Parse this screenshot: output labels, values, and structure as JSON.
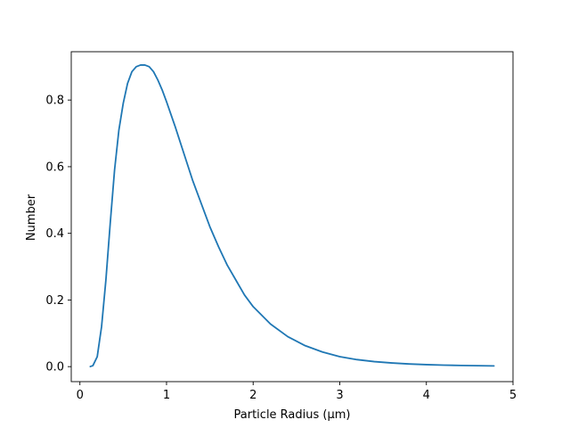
{
  "chart_data": {
    "type": "line",
    "title": "",
    "xlabel": "Particle Radius (μm)",
    "ylabel": "Number",
    "xlim": [
      -0.1,
      5.0
    ],
    "ylim": [
      -0.045,
      0.945
    ],
    "xticks": [
      "0",
      "1",
      "2",
      "3",
      "4",
      "5"
    ],
    "yticks": [
      "0.0",
      "0.2",
      "0.4",
      "0.6",
      "0.8"
    ],
    "grid": false,
    "line_color": "#1f77b4",
    "series": [
      {
        "x": [
          0.12,
          0.15,
          0.2,
          0.25,
          0.3,
          0.35,
          0.4,
          0.45,
          0.5,
          0.55,
          0.6,
          0.65,
          0.7,
          0.75,
          0.8,
          0.85,
          0.9,
          0.95,
          1.0,
          1.1,
          1.2,
          1.3,
          1.4,
          1.5,
          1.6,
          1.7,
          1.8,
          1.9,
          2.0,
          2.2,
          2.4,
          2.6,
          2.8,
          3.0,
          3.2,
          3.4,
          3.6,
          3.8,
          4.0,
          4.2,
          4.4,
          4.6,
          4.78
        ],
        "values": [
          0.0003,
          0.003,
          0.03,
          0.12,
          0.26,
          0.43,
          0.59,
          0.71,
          0.79,
          0.85,
          0.885,
          0.9,
          0.905,
          0.905,
          0.9,
          0.885,
          0.86,
          0.83,
          0.795,
          0.72,
          0.64,
          0.56,
          0.49,
          0.42,
          0.36,
          0.305,
          0.26,
          0.215,
          0.18,
          0.128,
          0.09,
          0.063,
          0.044,
          0.03,
          0.021,
          0.015,
          0.011,
          0.008,
          0.006,
          0.0045,
          0.0035,
          0.0028,
          0.0022
        ]
      }
    ]
  }
}
